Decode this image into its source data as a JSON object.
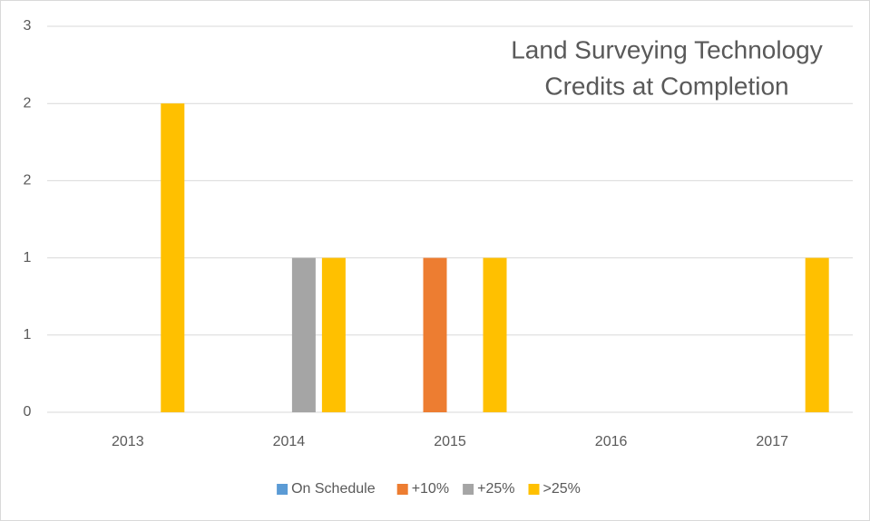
{
  "chart_data": {
    "type": "bar",
    "title": [
      "Land Surveying Technology",
      "Credits at Completion"
    ],
    "categories": [
      "2013",
      "2014",
      "2015",
      "2016",
      "2017"
    ],
    "series": [
      {
        "name": "On Schedule",
        "color": "#5b9bd5",
        "values": [
          0,
          0,
          0,
          0,
          0
        ]
      },
      {
        "name": "+10%",
        "color": "#ed7d31",
        "values": [
          0,
          0,
          1,
          0,
          0
        ]
      },
      {
        "name": "+25%",
        "color": "#a5a5a5",
        "values": [
          0,
          1,
          0,
          0,
          0
        ]
      },
      {
        "name": ">25%",
        "color": "#ffc000",
        "values": [
          2,
          1,
          1,
          0,
          1
        ]
      }
    ],
    "ylim": [
      0,
      2.5
    ],
    "yticks": [
      0,
      {
        "value": 0.5,
        "label": "1"
      },
      1,
      {
        "value": 1.5,
        "label": "2"
      },
      2,
      {
        "value": 2.5,
        "label": "3"
      }
    ],
    "grid": true,
    "legend": "bottom"
  }
}
